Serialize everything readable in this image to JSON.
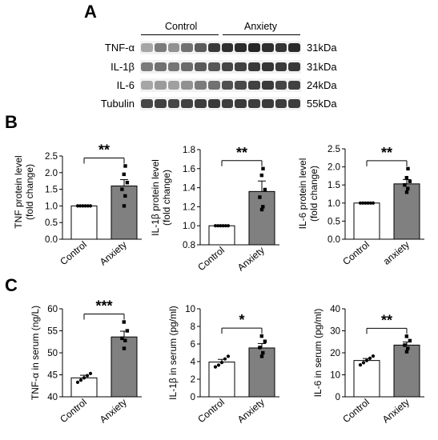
{
  "panels": {
    "a": "A",
    "b": "B",
    "c": "C"
  },
  "blot": {
    "groups": [
      "Control",
      "Anxiety"
    ],
    "rows": [
      {
        "protein": "TNF-α",
        "mw": "31kDa",
        "intensity": [
          0.35,
          0.55,
          0.45,
          0.6,
          0.7,
          0.85,
          0.9,
          0.92,
          0.95,
          0.9,
          0.88,
          0.92
        ]
      },
      {
        "protein": "IL-1β",
        "mw": "31kDa",
        "intensity": [
          0.55,
          0.6,
          0.58,
          0.62,
          0.7,
          0.72,
          0.8,
          0.82,
          0.85,
          0.88,
          0.85,
          0.86
        ]
      },
      {
        "protein": "IL-6",
        "mw": "24kDa",
        "intensity": [
          0.35,
          0.4,
          0.38,
          0.45,
          0.55,
          0.6,
          0.75,
          0.78,
          0.82,
          0.85,
          0.8,
          0.82
        ]
      },
      {
        "protein": "Tubulin",
        "mw": "55kDa",
        "intensity": [
          0.8,
          0.82,
          0.8,
          0.82,
          0.84,
          0.85,
          0.84,
          0.85,
          0.84,
          0.85,
          0.84,
          0.84
        ]
      }
    ]
  },
  "colors": {
    "control_bar": "#ffffff",
    "anxiety_bar": "#808080",
    "outline": "#000000",
    "band": "#1a1a1a"
  },
  "chart_data": [
    {
      "type": "bar",
      "ylabel": "TNF protein level (fold change)",
      "ylabel_lines": [
        "TNF protein level",
        "(fold change)"
      ],
      "categories": [
        "Control",
        "Anxiety"
      ],
      "values": [
        1.0,
        1.6
      ],
      "sem": [
        0.0,
        0.19
      ],
      "ylim": [
        0,
        2.5
      ],
      "yticks": [
        0.0,
        0.5,
        1.0,
        1.5,
        2.0,
        2.5
      ],
      "ytick_labels": [
        "0.0",
        "0.5",
        "1.0",
        "1.5",
        "2.0",
        "2.5"
      ],
      "points": [
        [
          1,
          1,
          1,
          1,
          1,
          1
        ],
        [
          1.0,
          1.3,
          1.5,
          1.7,
          1.95,
          2.2
        ]
      ],
      "significance": "**"
    },
    {
      "type": "bar",
      "ylabel": "IL-1β protein level (fold change)",
      "ylabel_lines": [
        "IL-1β protein level",
        "(fold change)"
      ],
      "categories": [
        "Control",
        "Anxiety"
      ],
      "values": [
        1.0,
        1.36
      ],
      "sem": [
        0.0,
        0.11
      ],
      "ylim": [
        0.8,
        1.8
      ],
      "yticks": [
        0.8,
        1.0,
        1.2,
        1.4,
        1.6,
        1.8
      ],
      "ytick_labels": [
        "0.8",
        "1.0",
        "1.2",
        "1.4",
        "1.6",
        "1.8"
      ],
      "points": [
        [
          1,
          1,
          1,
          1,
          1,
          1
        ],
        [
          1.17,
          1.2,
          1.3,
          1.38,
          1.53,
          1.6
        ]
      ],
      "significance": "**"
    },
    {
      "type": "bar",
      "ylabel": "IL-6 protein level (fold change)",
      "ylabel_lines": [
        "IL-6 protein level",
        "(fold change)"
      ],
      "categories": [
        "Control",
        "anxiety"
      ],
      "values": [
        1.0,
        1.53
      ],
      "sem": [
        0.0,
        0.12
      ],
      "ylim": [
        0,
        2.5
      ],
      "yticks": [
        0.0,
        0.5,
        1.0,
        1.5,
        2.0,
        2.5
      ],
      "ytick_labels": [
        "0.0",
        "0.5",
        "1.0",
        "1.5",
        "2.0",
        "2.5"
      ],
      "points": [
        [
          1,
          1,
          1,
          1,
          1,
          1
        ],
        [
          1.3,
          1.4,
          1.5,
          1.6,
          1.7,
          1.95
        ]
      ],
      "significance": "**"
    },
    {
      "type": "bar",
      "ylabel": "TNF-α in serum (ng/L)",
      "ylabel_lines": [
        "TNF-α in serum (ng/L)"
      ],
      "categories": [
        "Control",
        "Anxiety"
      ],
      "values": [
        44.3,
        53.6
      ],
      "sem": [
        0.6,
        1.3
      ],
      "ylim": [
        40,
        60
      ],
      "yticks": [
        40,
        45,
        50,
        55,
        60
      ],
      "ytick_labels": [
        "40",
        "45",
        "50",
        "55",
        "60"
      ],
      "points": [
        [
          43.3,
          43.8,
          44.3,
          44.8,
          45.3
        ],
        [
          51.0,
          52.8,
          53.3,
          55.0,
          57.0
        ]
      ],
      "significance": "***"
    },
    {
      "type": "bar",
      "ylabel": "IL-1β in serum (pg/ml)",
      "ylabel_lines": [
        "IL-1β in serum (pg/ml)"
      ],
      "categories": [
        "Control",
        "Anxiety"
      ],
      "values": [
        3.95,
        5.55
      ],
      "sem": [
        0.3,
        0.5
      ],
      "ylim": [
        0,
        10
      ],
      "yticks": [
        0,
        2,
        4,
        6,
        8,
        10
      ],
      "ytick_labels": [
        "0",
        "2",
        "4",
        "6",
        "8",
        "10"
      ],
      "points": [
        [
          3.4,
          3.6,
          3.9,
          4.3,
          4.6
        ],
        [
          4.6,
          5.0,
          5.6,
          6.3,
          6.9
        ]
      ],
      "significance": "*"
    },
    {
      "type": "bar",
      "ylabel": "IL-6 in serum (pg/ml)",
      "ylabel_lines": [
        "IL-6 in serum (pg/ml)"
      ],
      "categories": [
        "Control",
        "Anxiety"
      ],
      "values": [
        16.5,
        23.5
      ],
      "sem": [
        0.9,
        1.4
      ],
      "ylim": [
        0,
        40
      ],
      "yticks": [
        0,
        10,
        20,
        30,
        40
      ],
      "ytick_labels": [
        "0",
        "10",
        "20",
        "30",
        "40"
      ],
      "points": [
        [
          14.5,
          15.5,
          16.5,
          17.5,
          18.5
        ],
        [
          20.5,
          22.0,
          23.5,
          25.5,
          27.5
        ]
      ],
      "significance": "**"
    }
  ]
}
